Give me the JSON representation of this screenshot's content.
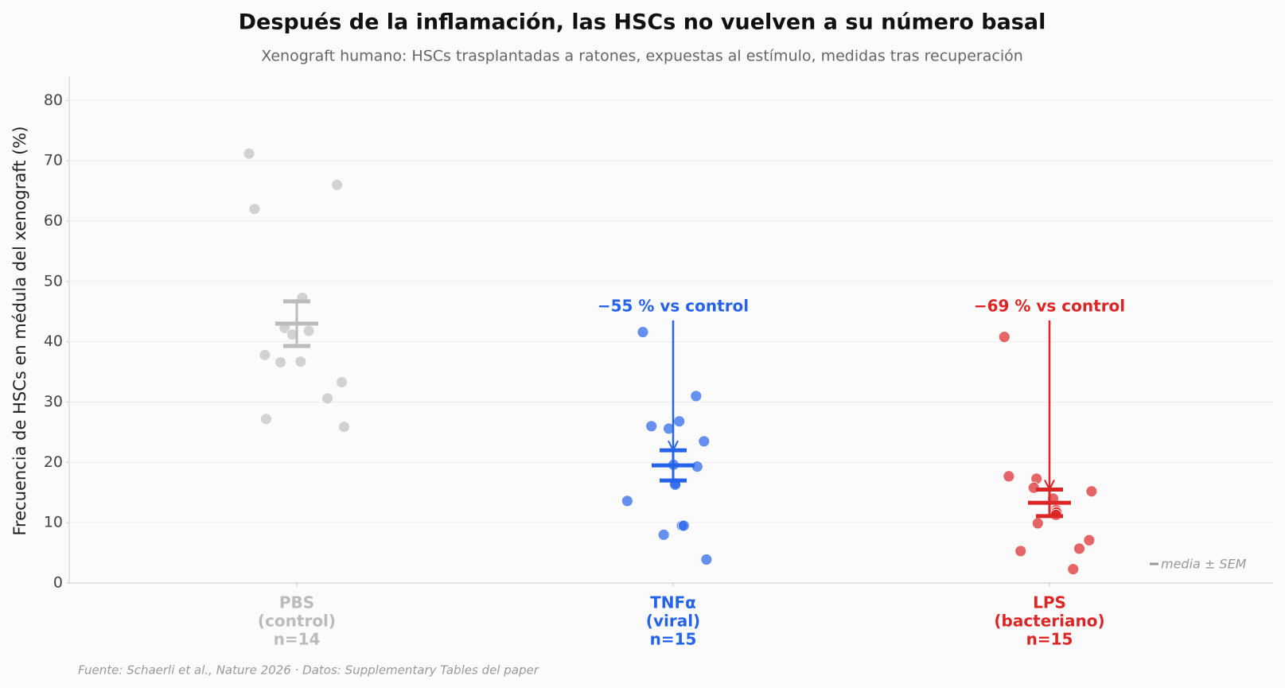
{
  "chart_data": {
    "type": "strip",
    "title": "Después de la inflamación, las HSCs no vuelven a su número basal",
    "subtitle": "Xenograft humano: HSCs trasplantadas a ratones, expuestas al estímulo, medidas tras recuperación",
    "y_label": "Frecuencia de HSCs en médula del xenograft (%)",
    "source": "Fuente: Schaerli et al., Nature 2026 · Datos: Supplementary Tables del paper",
    "legend": "media ± SEM",
    "ylim": [
      0,
      84
    ],
    "yticks": [
      0,
      10,
      20,
      30,
      40,
      50,
      60,
      70,
      80
    ],
    "grid": true,
    "categories": [
      [
        "PBS",
        "(control)",
        "n=14"
      ],
      [
        "TNFα",
        "(viral)",
        "n=15"
      ],
      [
        "LPS",
        "(bacteriano)",
        "n=15"
      ]
    ],
    "series": [
      {
        "color": "#bbbbbb",
        "values": [
          71.2,
          66.0,
          62.0,
          47.3,
          42.3,
          41.2,
          41.8,
          37.8,
          36.6,
          36.7,
          33.3,
          30.6,
          27.2,
          25.9
        ],
        "mean": 43.0,
        "sem": 3.7
      },
      {
        "color": "#2563eb",
        "values": [
          41.6,
          31.0,
          26.8,
          25.6,
          26.0,
          23.5,
          19.3,
          19.6,
          16.5,
          16.3,
          13.6,
          9.5,
          9.5,
          8.0,
          3.9
        ],
        "mean": 19.5,
        "sem": 2.5,
        "annotation": "−55 % vs control"
      },
      {
        "color": "#dc2626",
        "values": [
          40.8,
          17.7,
          17.3,
          15.8,
          15.2,
          14.0,
          12.1,
          11.7,
          11.7,
          11.3,
          9.9,
          7.1,
          5.7,
          5.3,
          2.3
        ],
        "mean": 13.3,
        "sem": 2.2,
        "annotation": "−69 % vs control"
      }
    ]
  }
}
